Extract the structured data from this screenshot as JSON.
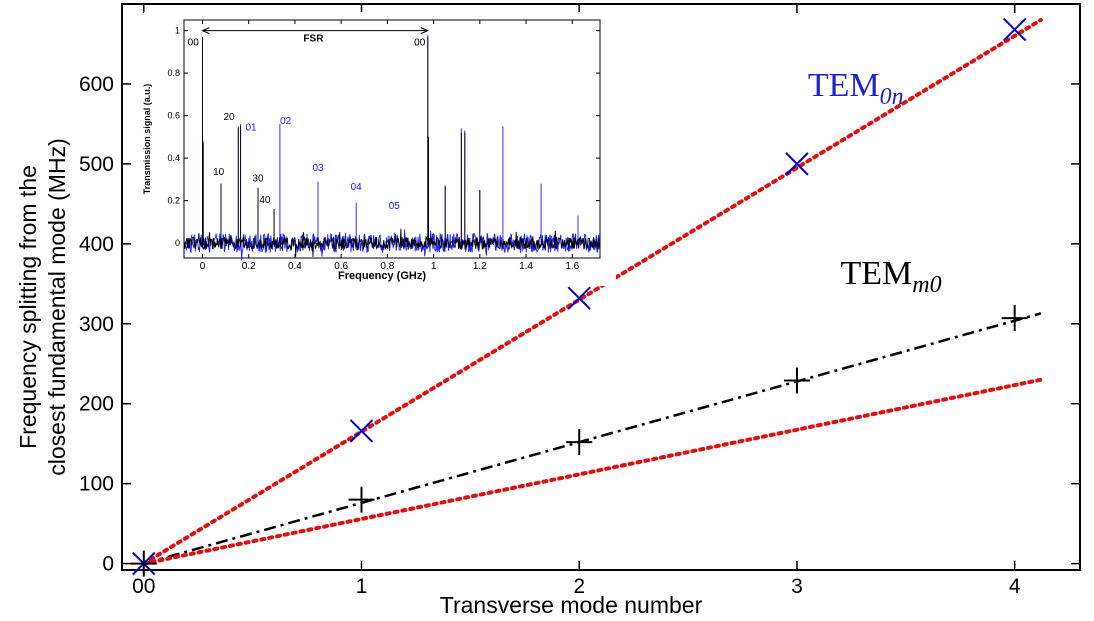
{
  "chart_data": [
    {
      "type": "scatter",
      "xlabel": "Transverse mode number",
      "ylabel_line1": "Frequency splitting from the",
      "ylabel_line2": "closest fundamental mode (MHz)",
      "xlim": [
        -0.1,
        4.3
      ],
      "ylim": [
        -8,
        700
      ],
      "x_ticks": [
        0,
        1,
        2,
        3,
        4
      ],
      "x_tick_labels": [
        "00",
        "1",
        "2",
        "3",
        "4"
      ],
      "y_ticks": [
        0,
        100,
        200,
        300,
        400,
        500,
        600
      ],
      "y_tick_labels": [
        "0",
        "100",
        "200",
        "300",
        "400",
        "500",
        "600"
      ],
      "grid": false,
      "series": [
        {
          "marker": "x",
          "color": "#0000cc",
          "x": [
            0,
            1,
            2,
            3,
            4
          ],
          "y": [
            0,
            166,
            332,
            500,
            668
          ]
        },
        {
          "marker": "+",
          "color": "#000000",
          "x": [
            0,
            1,
            2,
            3,
            4
          ],
          "y": [
            0,
            80,
            152,
            229,
            307
          ]
        },
        {
          "style": "dotted",
          "color": "#e01010",
          "x": [
            0,
            4.12
          ],
          "y": [
            0,
            680
          ]
        },
        {
          "style": "dashdot",
          "color": "#000000",
          "x": [
            0,
            4.12
          ],
          "y": [
            0,
            313
          ]
        },
        {
          "style": "dotted",
          "color": "#e01010",
          "x": [
            0,
            4.12
          ],
          "y": [
            0,
            230
          ]
        }
      ],
      "annotations": [
        {
          "main": "TEM",
          "sub": "0n",
          "color": "#2222cc",
          "x": 3.05,
          "y": 585
        },
        {
          "main": "TEM",
          "sub": "m0",
          "color": "#000000",
          "x": 3.2,
          "y": 350
        }
      ]
    },
    {
      "type": "line",
      "xlabel": "Frequency (GHz)",
      "ylabel": "Transmission signal (a.u.)",
      "xlim": [
        -0.08,
        1.72
      ],
      "ylim": [
        -0.07,
        1.05
      ],
      "x_ticks": [
        0,
        0.2,
        0.4,
        0.6,
        0.8,
        1,
        1.2,
        1.4,
        1.6
      ],
      "x_tick_labels": [
        "0",
        "0.2",
        "0.4",
        "0.6",
        "0.8",
        "1",
        "1.2",
        "1.4",
        "1.6"
      ],
      "y_ticks": [
        0,
        0.2,
        0.4,
        0.6,
        0.8,
        1
      ],
      "y_tick_labels": [
        "0",
        "0.2",
        "0.4",
        "0.6",
        "0.8",
        "1"
      ],
      "series": [
        {
          "color": "#1a1aff",
          "peaks": [
            {
              "x": 0,
              "y": 0.97
            },
            {
              "x": 0.003,
              "y": 0.48
            },
            {
              "x": 0.08,
              "y": 0.28
            },
            {
              "x": 0.155,
              "y": 0.55
            },
            {
              "x": 0.165,
              "y": 0.56
            },
            {
              "x": 0.24,
              "y": 0.26
            },
            {
              "x": 0.31,
              "y": 0.16
            },
            {
              "x": 0.335,
              "y": 0.56
            },
            {
              "x": 0.5,
              "y": 0.29
            },
            {
              "x": 0.665,
              "y": 0.19
            },
            {
              "x": 0.83,
              "y": 0.05
            },
            {
              "x": 0.975,
              "y": 0.98
            },
            {
              "x": 0.978,
              "y": 0.5
            },
            {
              "x": 1.05,
              "y": 0.27
            },
            {
              "x": 1.12,
              "y": 0.54
            },
            {
              "x": 1.135,
              "y": 0.53
            },
            {
              "x": 1.2,
              "y": 0.25
            },
            {
              "x": 1.3,
              "y": 0.55
            },
            {
              "x": 1.465,
              "y": 0.28
            },
            {
              "x": 1.625,
              "y": 0.13
            }
          ]
        },
        {
          "color": "#000000",
          "peaks": [
            {
              "x": 0,
              "y": 0.97
            },
            {
              "x": 0.003,
              "y": 0.47
            },
            {
              "x": 0.08,
              "y": 0.28
            },
            {
              "x": 0.155,
              "y": 0.54
            },
            {
              "x": 0.165,
              "y": 0.55
            },
            {
              "x": 0.24,
              "y": 0.26
            },
            {
              "x": 0.31,
              "y": 0.16
            },
            {
              "x": 0.975,
              "y": 0.97
            },
            {
              "x": 0.978,
              "y": 0.5
            },
            {
              "x": 1.05,
              "y": 0.27
            },
            {
              "x": 1.12,
              "y": 0.52
            },
            {
              "x": 1.135,
              "y": 0.52
            },
            {
              "x": 1.2,
              "y": 0.25
            }
          ]
        }
      ],
      "peak_labels": [
        {
          "text": "00",
          "color": "#000000",
          "x": -0.04,
          "y": 0.93
        },
        {
          "text": "00",
          "color": "#000000",
          "x": 0.94,
          "y": 0.93
        },
        {
          "text": "FSR",
          "color": "#000000",
          "x": 0.48,
          "y": 0.95
        },
        {
          "text": "20",
          "color": "#000000",
          "x": 0.115,
          "y": 0.58
        },
        {
          "text": "01",
          "color": "#1a1aff",
          "x": 0.21,
          "y": 0.53
        },
        {
          "text": "02",
          "color": "#1a1aff",
          "x": 0.36,
          "y": 0.56
        },
        {
          "text": "10",
          "color": "#000000",
          "x": 0.07,
          "y": 0.32
        },
        {
          "text": "30",
          "color": "#000000",
          "x": 0.24,
          "y": 0.29
        },
        {
          "text": "40",
          "color": "#000000",
          "x": 0.27,
          "y": 0.19
        },
        {
          "text": "03",
          "color": "#1a1aff",
          "x": 0.5,
          "y": 0.34
        },
        {
          "text": "04",
          "color": "#1a1aff",
          "x": 0.665,
          "y": 0.25
        },
        {
          "text": "05",
          "color": "#1a1aff",
          "x": 0.83,
          "y": 0.16
        }
      ]
    }
  ]
}
